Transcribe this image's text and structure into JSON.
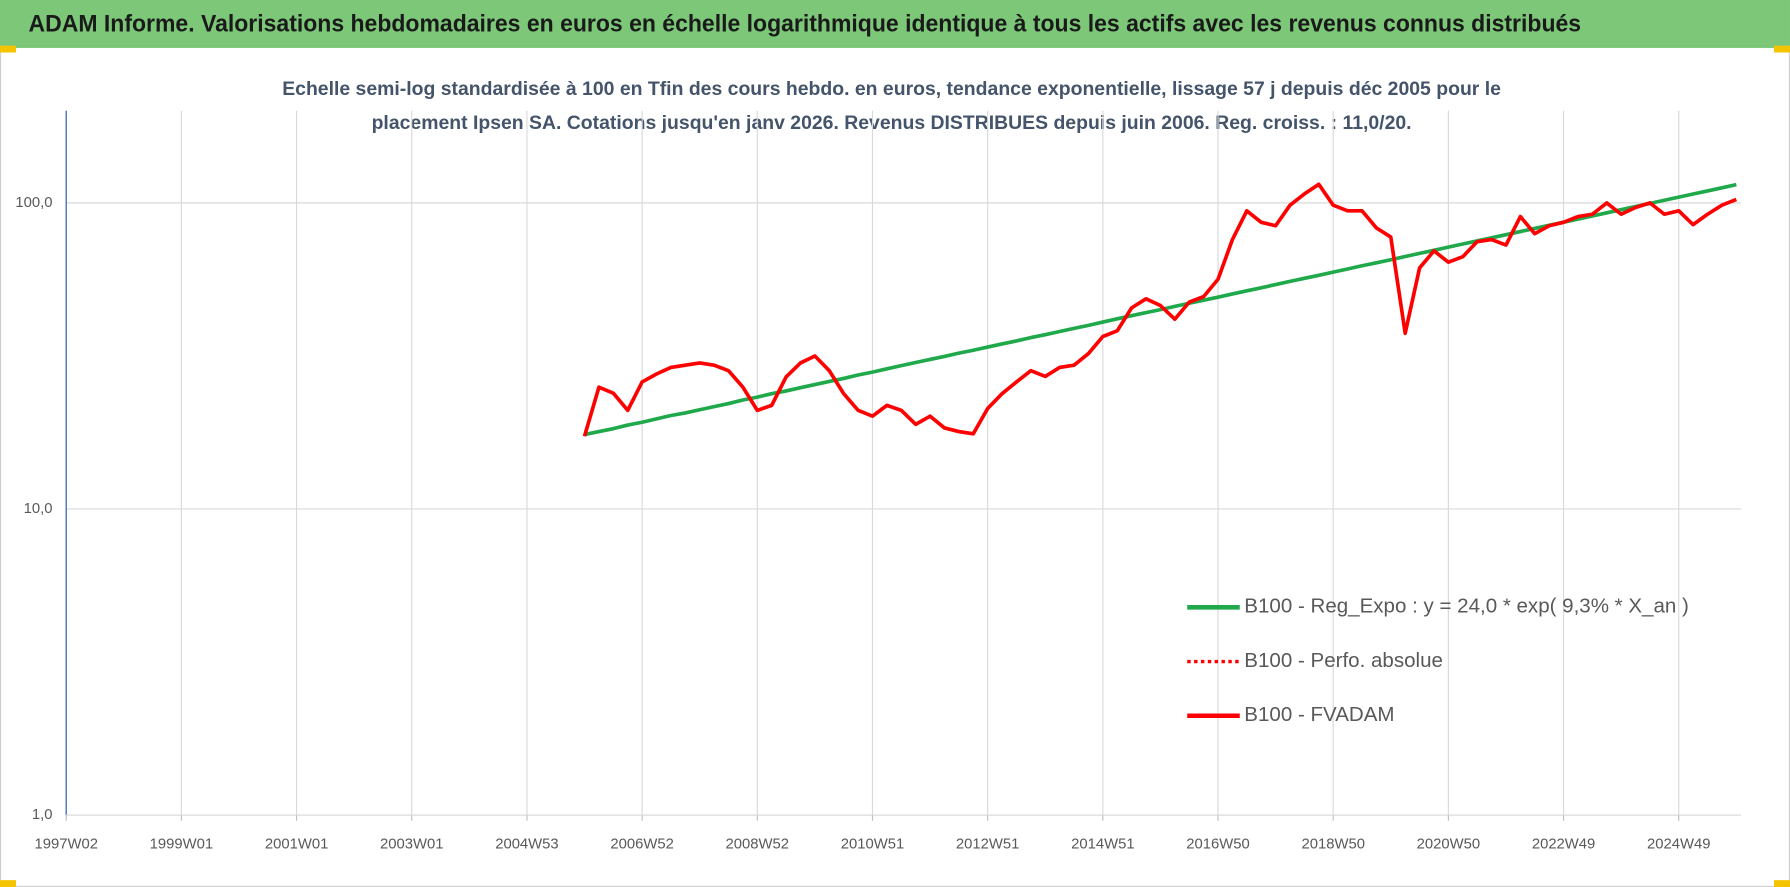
{
  "chart_data": {
    "type": "line",
    "title": "ADAM Informe. Valorisations hebdomadaires en euros en échelle logarithmique identique à tous les actifs avec les revenus connus distribués",
    "subtitle": "Echelle semi-log standardisée à 100 en Tfin des cours hebdo. en euros, tendance exponentielle, lissage 57 j depuis déc 2005 pour le placement Ipsen SA. Cotations jusqu'en janv 2026. Revenus DISTRIBUES depuis juin 2006. Reg. croiss. : 11,0/20.",
    "categories": [
      "1997W02",
      null,
      null,
      null,
      null,
      null,
      null,
      null,
      "1999W01",
      null,
      null,
      null,
      null,
      null,
      null,
      null,
      "2001W01",
      null,
      null,
      null,
      null,
      null,
      null,
      null,
      "2003W01",
      null,
      null,
      null,
      null,
      null,
      null,
      null,
      "2004W53",
      null,
      null,
      null,
      null,
      null,
      null,
      null,
      "2006W52",
      null,
      null,
      null,
      null,
      null,
      null,
      null,
      "2008W52",
      null,
      null,
      null,
      null,
      null,
      null,
      null,
      "2010W51",
      null,
      null,
      null,
      null,
      null,
      null,
      null,
      "2012W51",
      null,
      null,
      null,
      null,
      null,
      null,
      null,
      "2014W51",
      null,
      null,
      null,
      null,
      null,
      null,
      null,
      "2016W50",
      null,
      null,
      null,
      null,
      null,
      null,
      null,
      "2018W50",
      null,
      null,
      null,
      null,
      null,
      null,
      null,
      "2020W50",
      null,
      null,
      null,
      null,
      null,
      null,
      null,
      "2022W49",
      null,
      null,
      null,
      null,
      null,
      null,
      null,
      "2024W49",
      null,
      null,
      null,
      null
    ],
    "series": [
      {
        "name": "B100 - Reg_Expo : y = 24,0 * exp( 9,3% *  X_an )",
        "color": "#1fa94b",
        "style": "solid",
        "values": [
          null,
          null,
          null,
          null,
          null,
          null,
          null,
          null,
          null,
          null,
          null,
          null,
          null,
          null,
          null,
          null,
          null,
          null,
          null,
          null,
          null,
          null,
          null,
          null,
          null,
          null,
          null,
          null,
          null,
          null,
          null,
          null,
          null,
          null,
          null,
          null,
          17.5,
          17.9,
          18.3,
          18.8,
          19.2,
          19.7,
          20.2,
          20.6,
          21.1,
          21.6,
          22.1,
          22.7,
          23.2,
          23.8,
          24.3,
          24.9,
          25.5,
          26.1,
          26.7,
          27.4,
          28.0,
          28.7,
          29.4,
          30.1,
          30.8,
          31.5,
          32.3,
          33.0,
          33.8,
          34.6,
          35.4,
          36.3,
          37.1,
          38.0,
          38.9,
          39.8,
          40.8,
          41.8,
          42.8,
          43.8,
          44.8,
          45.9,
          47.0,
          48.1,
          49.2,
          50.4,
          51.6,
          52.8,
          54.1,
          55.4,
          56.7,
          58.0,
          59.4,
          60.8,
          62.3,
          63.7,
          65.2,
          66.8,
          68.4,
          70.0,
          71.7,
          73.4,
          75.1,
          76.9,
          78.7,
          80.6,
          82.5,
          84.5,
          86.5,
          88.5,
          90.6,
          92.8,
          95.0,
          97.3,
          99.6,
          102.0,
          104.4,
          106.9,
          109.4,
          112.0,
          114.7
        ]
      },
      {
        "name": "B100 - Perfo. absolue",
        "color": "#ff0000",
        "style": "dotted",
        "values": [
          null,
          null,
          null,
          null,
          null,
          null,
          null,
          null,
          null,
          null,
          null,
          null,
          null,
          null,
          null,
          null,
          null,
          null,
          null,
          null,
          null,
          null,
          null,
          null,
          null,
          null,
          null,
          null,
          null,
          null,
          null,
          null,
          null,
          null,
          null,
          null,
          17.3,
          25,
          23.9,
          21,
          26,
          27.6,
          29,
          29.5,
          30,
          29.5,
          28.3,
          25,
          21,
          21.8,
          27,
          30,
          31.6,
          28.3,
          23.8,
          21,
          20.1,
          21.8,
          21,
          18.9,
          20.1,
          18.4,
          17.9,
          17.6,
          21.3,
          23.8,
          26,
          28.3,
          27.1,
          29,
          29.5,
          32.2,
          36.6,
          38.2,
          45.4,
          48.6,
          46.2,
          41.7,
          47.4,
          49.4,
          56.3,
          75.9,
          94.2,
          86.4,
          84.2,
          98.3,
          107,
          115,
          98.3,
          94.2,
          94.2,
          82.8,
          77.3,
          37.5,
          61.3,
          69.7,
          64,
          66.7,
          74.7,
          75.9,
          72.8,
          90.2,
          79.3,
          84.2,
          86.4,
          90.2,
          91.8,
          100,
          91.8,
          96.6,
          100,
          91.8,
          94.2,
          84.9,
          91.8,
          98.3,
          102.6
        ]
      },
      {
        "name": "B100 - FVADAM",
        "color": "#ff0000",
        "style": "solid",
        "values": [
          null,
          null,
          null,
          null,
          null,
          null,
          null,
          null,
          null,
          null,
          null,
          null,
          null,
          null,
          null,
          null,
          null,
          null,
          null,
          null,
          null,
          null,
          null,
          null,
          null,
          null,
          null,
          null,
          null,
          null,
          null,
          null,
          null,
          null,
          null,
          null,
          17.3,
          25,
          23.9,
          21,
          26,
          27.6,
          29,
          29.5,
          30,
          29.5,
          28.3,
          25,
          21,
          21.8,
          27,
          30,
          31.6,
          28.3,
          23.8,
          21,
          20.1,
          21.8,
          21,
          18.9,
          20.1,
          18.4,
          17.9,
          17.6,
          21.3,
          23.8,
          26,
          28.3,
          27.1,
          29,
          29.5,
          32.2,
          36.6,
          38.2,
          45.4,
          48.6,
          46.2,
          41.7,
          47.4,
          49.4,
          56.3,
          75.9,
          94.2,
          86.4,
          84.2,
          98.3,
          107,
          115,
          98.3,
          94.2,
          94.2,
          82.8,
          77.3,
          37.5,
          61.3,
          69.7,
          64,
          66.7,
          74.7,
          75.9,
          72.8,
          90.2,
          79.3,
          84.2,
          86.4,
          90.2,
          91.8,
          100,
          91.8,
          96.6,
          100,
          91.8,
          94.2,
          84.9,
          91.8,
          98.3,
          102.6
        ]
      }
    ],
    "log_scale": true,
    "ylim": [
      1,
      200
    ],
    "yticks": [
      {
        "value": 1,
        "label": "1,0"
      },
      {
        "value": 10,
        "label": "10,0"
      },
      {
        "value": 100,
        "label": "100,0"
      }
    ],
    "grid": true,
    "legend": "right"
  }
}
